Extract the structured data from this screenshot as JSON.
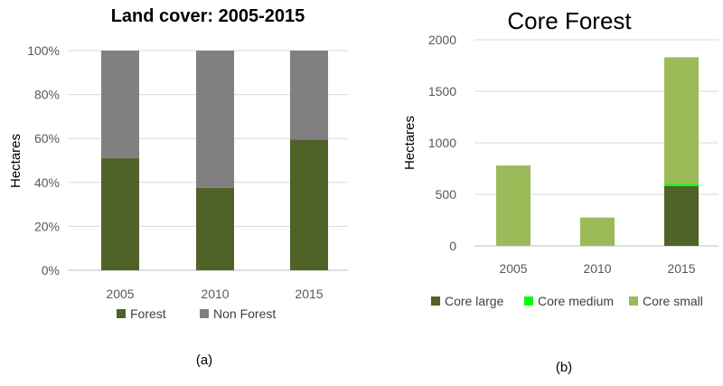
{
  "chart_data": [
    {
      "type": "bar",
      "stacked": true,
      "title": "Land cover: 2005-2015",
      "ylabel": "Hectares",
      "categories": [
        "2005",
        "2010",
        "2015"
      ],
      "series": [
        {
          "name": "Forest",
          "values": [
            51,
            37.5,
            59.5
          ],
          "color": "#4f6228"
        },
        {
          "name": "Non Forest",
          "values": [
            49,
            62.5,
            40.5
          ],
          "color": "#808080"
        }
      ],
      "ylim": [
        0,
        100
      ],
      "yticks": [
        "0%",
        "20%",
        "40%",
        "60%",
        "80%",
        "100%"
      ],
      "grid": true,
      "legend": "bottom",
      "caption": "(a)"
    },
    {
      "type": "bar",
      "stacked": true,
      "title": "Core Forest",
      "ylabel": "Hectares",
      "categories": [
        "2005",
        "2010",
        "2015"
      ],
      "series": [
        {
          "name": "Core large",
          "values": [
            0,
            0,
            580
          ],
          "color": "#4f6228"
        },
        {
          "name": "Core medium",
          "values": [
            0,
            0,
            20
          ],
          "color": "#00ff00"
        },
        {
          "name": "Core small",
          "values": [
            780,
            275,
            1230
          ],
          "color": "#9bbb59"
        }
      ],
      "ylim": [
        0,
        2000
      ],
      "yticks": [
        "0",
        "500",
        "1000",
        "1500",
        "2000"
      ],
      "grid": true,
      "legend": "bottom",
      "caption": "(b)"
    }
  ]
}
